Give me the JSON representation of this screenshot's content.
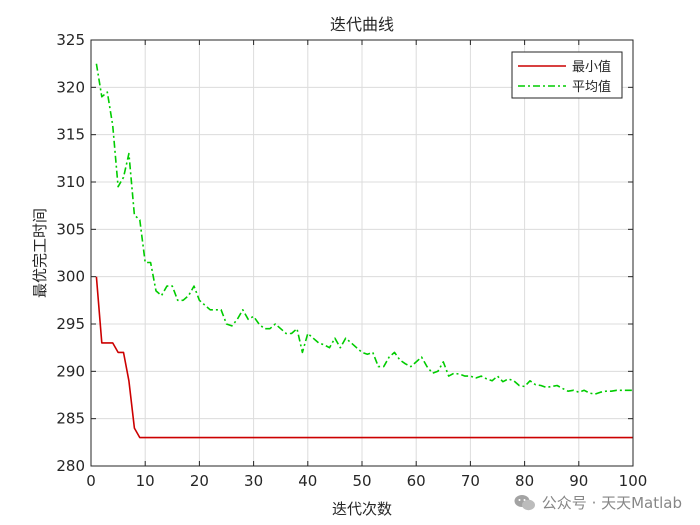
{
  "chart_data": {
    "type": "line",
    "title": "迭代曲线",
    "xlabel": "迭代次数",
    "ylabel": "最优完工时间",
    "xlim": [
      0,
      100
    ],
    "ylim": [
      280,
      325
    ],
    "xticks": [
      0,
      10,
      20,
      30,
      40,
      50,
      60,
      70,
      80,
      90,
      100
    ],
    "yticks": [
      280,
      285,
      290,
      295,
      300,
      305,
      310,
      315,
      320,
      325
    ],
    "grid": true,
    "legend_position": "top-right",
    "series": [
      {
        "name": "最小值",
        "color": "#cc0000",
        "style": "solid",
        "x": [
          1,
          2,
          3,
          4,
          5,
          6,
          7,
          8,
          9,
          10,
          100
        ],
        "y": [
          300,
          293,
          293,
          293,
          292,
          292,
          289,
          284,
          283,
          283,
          283
        ]
      },
      {
        "name": "平均值",
        "color": "#00cc00",
        "style": "dashdot",
        "x": [
          1,
          2,
          3,
          4,
          5,
          6,
          7,
          8,
          9,
          10,
          11,
          12,
          13,
          14,
          15,
          16,
          17,
          18,
          19,
          20,
          21,
          22,
          23,
          24,
          25,
          26,
          27,
          28,
          29,
          30,
          31,
          32,
          33,
          34,
          35,
          36,
          37,
          38,
          39,
          40,
          41,
          42,
          43,
          44,
          45,
          46,
          47,
          48,
          49,
          50,
          51,
          52,
          53,
          54,
          55,
          56,
          57,
          58,
          59,
          60,
          61,
          62,
          63,
          64,
          65,
          66,
          67,
          68,
          69,
          70,
          71,
          72,
          73,
          74,
          75,
          76,
          77,
          78,
          79,
          80,
          81,
          82,
          83,
          84,
          85,
          86,
          87,
          88,
          89,
          90,
          91,
          92,
          93,
          94,
          95,
          96,
          97,
          98,
          99,
          100
        ],
        "y": [
          322.5,
          319.0,
          319.5,
          316.0,
          309.5,
          310.5,
          313.0,
          306.5,
          306.0,
          301.5,
          301.5,
          298.5,
          298.0,
          299.0,
          299.0,
          297.5,
          297.5,
          298.0,
          299.0,
          297.5,
          297.0,
          296.5,
          296.5,
          296.5,
          295.0,
          294.8,
          295.5,
          296.5,
          295.5,
          295.8,
          295.0,
          294.5,
          294.5,
          295.0,
          294.5,
          294.0,
          294.0,
          294.5,
          292.0,
          294.0,
          293.5,
          293.0,
          292.8,
          292.5,
          293.5,
          292.5,
          293.5,
          293.0,
          292.5,
          292.0,
          291.8,
          292.0,
          290.5,
          290.5,
          291.5,
          292.0,
          291.2,
          290.8,
          290.5,
          291.0,
          291.5,
          290.5,
          289.8,
          290.0,
          291.0,
          289.5,
          289.8,
          289.7,
          289.5,
          289.5,
          289.3,
          289.5,
          289.2,
          289.0,
          289.5,
          288.9,
          289.2,
          289.0,
          288.5,
          288.4,
          289.0,
          288.6,
          288.5,
          288.3,
          288.4,
          288.5,
          288.2,
          287.9,
          288.0,
          287.8,
          288.0,
          287.7,
          287.6,
          287.8,
          287.9,
          287.9,
          288.0,
          288.0,
          288.0,
          288.0
        ]
      }
    ]
  },
  "watermark": {
    "icon": "wechat-icon",
    "text": "公众号 · 天天Matlab"
  }
}
